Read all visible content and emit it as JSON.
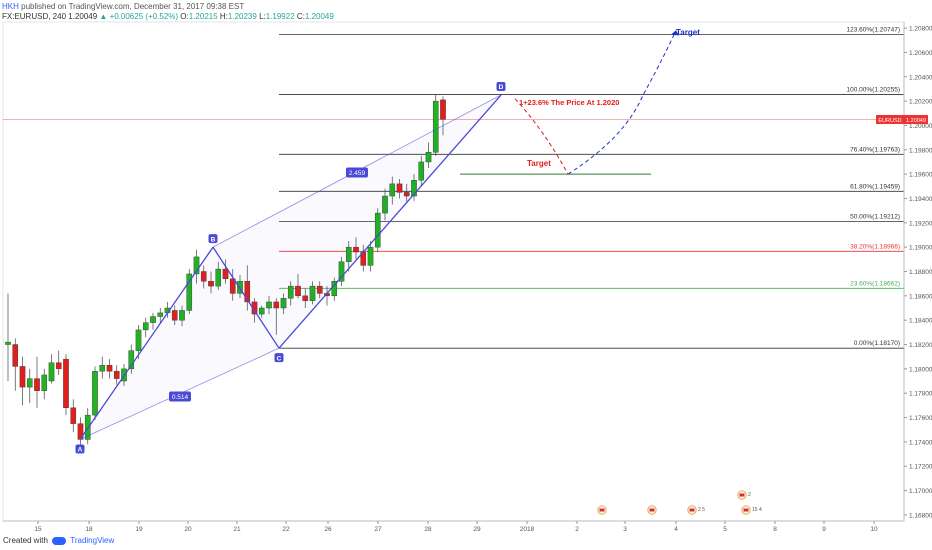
{
  "header": {
    "username": "HKH",
    "published_text": "published on TradingView.com, December 31, 2017 09:38 EST",
    "symbol_line": "FX:EURUSD, 240",
    "last": "1.20049",
    "change": "▲ +0.00625 (+0.52%)",
    "open_label": "O:",
    "open": "1.20215",
    "high_label": "H:",
    "high": "1.20239",
    "low_label": "L:",
    "low": "1.19922",
    "close_label": "C:",
    "close": "1.20049"
  },
  "footer": {
    "created_with": "Created with",
    "brand": "TradingView"
  },
  "colors": {
    "up": "#22b322",
    "down": "#e0201c",
    "harmonic": "#4a4ad6",
    "projection_up": "#1c2fbf",
    "projection_down": "#e0201c",
    "price_line": "#e33",
    "fib_line": "#333",
    "fib_382": "#e33",
    "fib_236": "#4caf50"
  },
  "chart_data": {
    "type": "candlestick",
    "symbol": "EURUSD",
    "timeframe": "240",
    "ylim": [
      1.1675,
      1.2085
    ],
    "y_ticks": [
      "1.20800",
      "1.20600",
      "1.20400",
      "1.20200",
      "1.20000",
      "1.19800",
      "1.19600",
      "1.19400",
      "1.19200",
      "1.19000",
      "1.18800",
      "1.18600",
      "1.18400",
      "1.18200",
      "1.18000",
      "1.17800",
      "1.17600",
      "1.17400",
      "1.17200",
      "1.17000",
      "1.16800"
    ],
    "x_ticks": [
      "15",
      "18",
      "19",
      "20",
      "21",
      "22",
      "26",
      "27",
      "28",
      "29",
      "2018",
      "2",
      "3",
      "4",
      "5",
      "8",
      "9",
      "10"
    ],
    "current_price_label": "EURUSD",
    "current_price": "1.20049",
    "candles": [
      {
        "o": 1.182,
        "h": 1.1862,
        "l": 1.179,
        "c": 1.1822
      },
      {
        "o": 1.182,
        "h": 1.1825,
        "l": 1.1782,
        "c": 1.1802
      },
      {
        "o": 1.1802,
        "h": 1.181,
        "l": 1.177,
        "c": 1.1785
      },
      {
        "o": 1.1785,
        "h": 1.18,
        "l": 1.1772,
        "c": 1.1792
      },
      {
        "o": 1.1792,
        "h": 1.181,
        "l": 1.1768,
        "c": 1.1782
      },
      {
        "o": 1.1782,
        "h": 1.18,
        "l": 1.1775,
        "c": 1.1795
      },
      {
        "o": 1.179,
        "h": 1.1812,
        "l": 1.1788,
        "c": 1.1805
      },
      {
        "o": 1.1805,
        "h": 1.1815,
        "l": 1.1795,
        "c": 1.18
      },
      {
        "o": 1.1808,
        "h": 1.1812,
        "l": 1.1762,
        "c": 1.1768
      },
      {
        "o": 1.1768,
        "h": 1.1775,
        "l": 1.1748,
        "c": 1.1755
      },
      {
        "o": 1.1755,
        "h": 1.176,
        "l": 1.1735,
        "c": 1.1742
      },
      {
        "o": 1.1742,
        "h": 1.1768,
        "l": 1.1738,
        "c": 1.1762
      },
      {
        "o": 1.1762,
        "h": 1.1802,
        "l": 1.1758,
        "c": 1.1798
      },
      {
        "o": 1.1798,
        "h": 1.181,
        "l": 1.1792,
        "c": 1.1803
      },
      {
        "o": 1.1803,
        "h": 1.1808,
        "l": 1.1792,
        "c": 1.1798
      },
      {
        "o": 1.1798,
        "h": 1.1803,
        "l": 1.1787,
        "c": 1.1792
      },
      {
        "o": 1.179,
        "h": 1.1804,
        "l": 1.1786,
        "c": 1.18
      },
      {
        "o": 1.18,
        "h": 1.182,
        "l": 1.1796,
        "c": 1.1815
      },
      {
        "o": 1.1815,
        "h": 1.1836,
        "l": 1.1808,
        "c": 1.1832
      },
      {
        "o": 1.1832,
        "h": 1.1842,
        "l": 1.1826,
        "c": 1.1838
      },
      {
        "o": 1.1838,
        "h": 1.1846,
        "l": 1.1832,
        "c": 1.1843
      },
      {
        "o": 1.1843,
        "h": 1.185,
        "l": 1.1837,
        "c": 1.1846
      },
      {
        "o": 1.1846,
        "h": 1.1855,
        "l": 1.1842,
        "c": 1.185
      },
      {
        "o": 1.1848,
        "h": 1.1852,
        "l": 1.1836,
        "c": 1.184
      },
      {
        "o": 1.184,
        "h": 1.1852,
        "l": 1.1835,
        "c": 1.1848
      },
      {
        "o": 1.1848,
        "h": 1.1882,
        "l": 1.1845,
        "c": 1.1878
      },
      {
        "o": 1.1878,
        "h": 1.1898,
        "l": 1.187,
        "c": 1.1892
      },
      {
        "o": 1.188,
        "h": 1.1885,
        "l": 1.1866,
        "c": 1.1872
      },
      {
        "o": 1.1872,
        "h": 1.188,
        "l": 1.1862,
        "c": 1.1868
      },
      {
        "o": 1.1868,
        "h": 1.1888,
        "l": 1.1865,
        "c": 1.1882
      },
      {
        "o": 1.1882,
        "h": 1.189,
        "l": 1.187,
        "c": 1.1874
      },
      {
        "o": 1.1874,
        "h": 1.1882,
        "l": 1.1856,
        "c": 1.1862
      },
      {
        "o": 1.1862,
        "h": 1.1877,
        "l": 1.1858,
        "c": 1.1872
      },
      {
        "o": 1.1872,
        "h": 1.1885,
        "l": 1.1848,
        "c": 1.1855
      },
      {
        "o": 1.1855,
        "h": 1.1858,
        "l": 1.1838,
        "c": 1.1845
      },
      {
        "o": 1.1845,
        "h": 1.1852,
        "l": 1.1842,
        "c": 1.185
      },
      {
        "o": 1.185,
        "h": 1.186,
        "l": 1.1845,
        "c": 1.1855
      },
      {
        "o": 1.1855,
        "h": 1.1858,
        "l": 1.1828,
        "c": 1.185
      },
      {
        "o": 1.185,
        "h": 1.1862,
        "l": 1.1845,
        "c": 1.1858
      },
      {
        "o": 1.1858,
        "h": 1.1872,
        "l": 1.1852,
        "c": 1.1868
      },
      {
        "o": 1.1868,
        "h": 1.1878,
        "l": 1.1858,
        "c": 1.186
      },
      {
        "o": 1.186,
        "h": 1.1866,
        "l": 1.185,
        "c": 1.1856
      },
      {
        "o": 1.1856,
        "h": 1.1872,
        "l": 1.1853,
        "c": 1.1868
      },
      {
        "o": 1.1868,
        "h": 1.1872,
        "l": 1.1858,
        "c": 1.1862
      },
      {
        "o": 1.1862,
        "h": 1.1868,
        "l": 1.1852,
        "c": 1.186
      },
      {
        "o": 1.186,
        "h": 1.1875,
        "l": 1.1856,
        "c": 1.1872
      },
      {
        "o": 1.1872,
        "h": 1.1892,
        "l": 1.1868,
        "c": 1.1888
      },
      {
        "o": 1.1888,
        "h": 1.1905,
        "l": 1.188,
        "c": 1.19
      },
      {
        "o": 1.19,
        "h": 1.1908,
        "l": 1.189,
        "c": 1.1896
      },
      {
        "o": 1.1896,
        "h": 1.1902,
        "l": 1.188,
        "c": 1.1885
      },
      {
        "o": 1.1885,
        "h": 1.1905,
        "l": 1.188,
        "c": 1.19
      },
      {
        "o": 1.19,
        "h": 1.1932,
        "l": 1.1896,
        "c": 1.1928
      },
      {
        "o": 1.1928,
        "h": 1.1948,
        "l": 1.1922,
        "c": 1.1942
      },
      {
        "o": 1.1942,
        "h": 1.1958,
        "l": 1.1935,
        "c": 1.1952
      },
      {
        "o": 1.1952,
        "h": 1.1956,
        "l": 1.194,
        "c": 1.1945
      },
      {
        "o": 1.1945,
        "h": 1.1952,
        "l": 1.1936,
        "c": 1.1942
      },
      {
        "o": 1.1942,
        "h": 1.196,
        "l": 1.1938,
        "c": 1.1955
      },
      {
        "o": 1.1955,
        "h": 1.1975,
        "l": 1.195,
        "c": 1.197
      },
      {
        "o": 1.197,
        "h": 1.1986,
        "l": 1.1965,
        "c": 1.1978
      },
      {
        "o": 1.1978,
        "h": 1.2025,
        "l": 1.1975,
        "c": 1.202
      },
      {
        "o": 1.2021,
        "h": 1.2024,
        "l": 1.1992,
        "c": 1.2005
      }
    ],
    "harmonic": {
      "points": [
        {
          "label": "A",
          "price": 1.1742
        },
        {
          "label": "B",
          "price": 1.19
        },
        {
          "label": "C",
          "price": 1.1817
        },
        {
          "label": "D",
          "price": 1.2025
        }
      ],
      "ratio_labels": [
        "0.514",
        "2.459"
      ]
    },
    "fibonacci": [
      {
        "label": "123.60%(1.20747)",
        "value": 1.20747
      },
      {
        "label": "100.00%(1.20255)",
        "value": 1.20255
      },
      {
        "label": "76.40%(1.19763)",
        "value": 1.19763
      },
      {
        "label": "61.80%(1.19459)",
        "value": 1.19459
      },
      {
        "label": "50.00%(1.19212)",
        "value": 1.19212
      },
      {
        "label": "38.20%(1.18966)",
        "value": 1.18966
      },
      {
        "label": "23.60%(1.18662)",
        "value": 1.18662
      },
      {
        "label": "0.00%(1.18170)",
        "value": 1.1817
      }
    ],
    "support_level": 1.196,
    "annotations": {
      "price_note": "1+23.6% The Price At 1.2020",
      "target_lower": "Target",
      "target_upper": "Target"
    },
    "projection": [
      {
        "leg": "down",
        "from": 1.2022,
        "to": 1.196
      },
      {
        "leg": "up",
        "from": 1.196,
        "to": 1.2078
      }
    ],
    "event_markers": [
      {
        "text": ""
      },
      {
        "text": ""
      },
      {
        "text": "2 5"
      },
      {
        "text": "2"
      },
      {
        "text": "15 4"
      }
    ]
  }
}
